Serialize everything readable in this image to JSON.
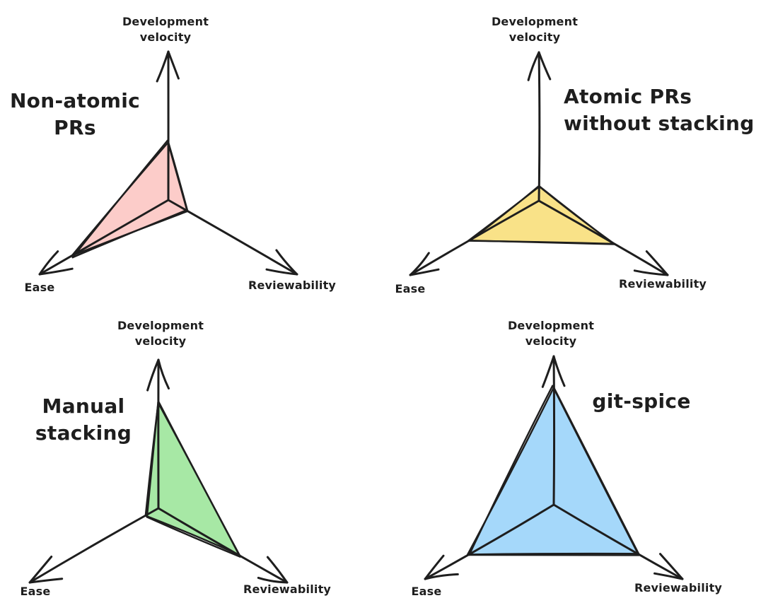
{
  "page": {
    "background": "#ffffff",
    "stroke_color": "#1e1e1e"
  },
  "chart_data": {
    "type": "radar",
    "grid": "off",
    "value_range": [
      0,
      1
    ],
    "axes": [
      {
        "key": "velocity",
        "label": "Development velocity",
        "label_display": "Development\nvelocity"
      },
      {
        "key": "ease",
        "label": "Ease",
        "label_display": "Ease"
      },
      {
        "key": "reviewability",
        "label": "Reviewability",
        "label_display": "Reviewability"
      }
    ],
    "series": [
      {
        "name": "Non-atomic PRs",
        "title_display": "Non-atomic\nPRs",
        "fill": "#fcccc9",
        "values": [
          0.39,
          0.75,
          0.15
        ]
      },
      {
        "name": "Atomic PRs without stacking",
        "title_display": "Atomic PRs\nwithout stacking",
        "fill": "#f9e288",
        "values": [
          0.1,
          0.54,
          0.58
        ]
      },
      {
        "name": "Manual stacking",
        "title_display": "Manual\nstacking",
        "fill": "#a7e8a5",
        "values": [
          0.72,
          0.1,
          0.63
        ]
      },
      {
        "name": "git-spice",
        "title_display": "git-spice",
        "fill": "#a5d8fa",
        "values": [
          0.79,
          0.67,
          0.66
        ]
      }
    ]
  }
}
